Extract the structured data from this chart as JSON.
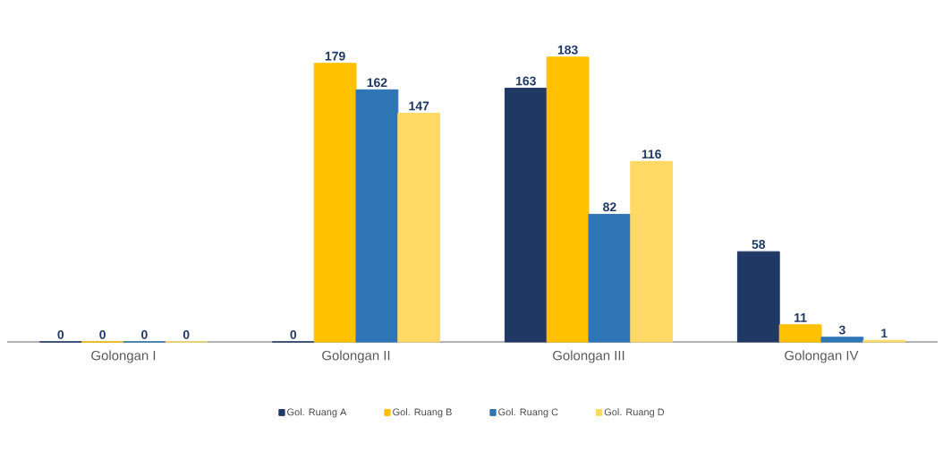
{
  "chart_data": {
    "type": "bar",
    "categories": [
      "Golongan I",
      "Golongan II",
      "Golongan III",
      "Golongan IV"
    ],
    "series": [
      {
        "name": "Gol. Ruang A",
        "color": "#1f3864",
        "values": [
          0,
          0,
          163,
          58
        ]
      },
      {
        "name": "Gol. Ruang B",
        "color": "#ffc000",
        "values": [
          0,
          179,
          183,
          11
        ]
      },
      {
        "name": "Gol. Ruang C",
        "color": "#2e75b6",
        "values": [
          0,
          162,
          82,
          3
        ]
      },
      {
        "name": "Gol. Ruang D",
        "color": "#ffd966",
        "values": [
          0,
          147,
          116,
          1
        ]
      }
    ],
    "data_labels": true,
    "legend": "bottom"
  }
}
